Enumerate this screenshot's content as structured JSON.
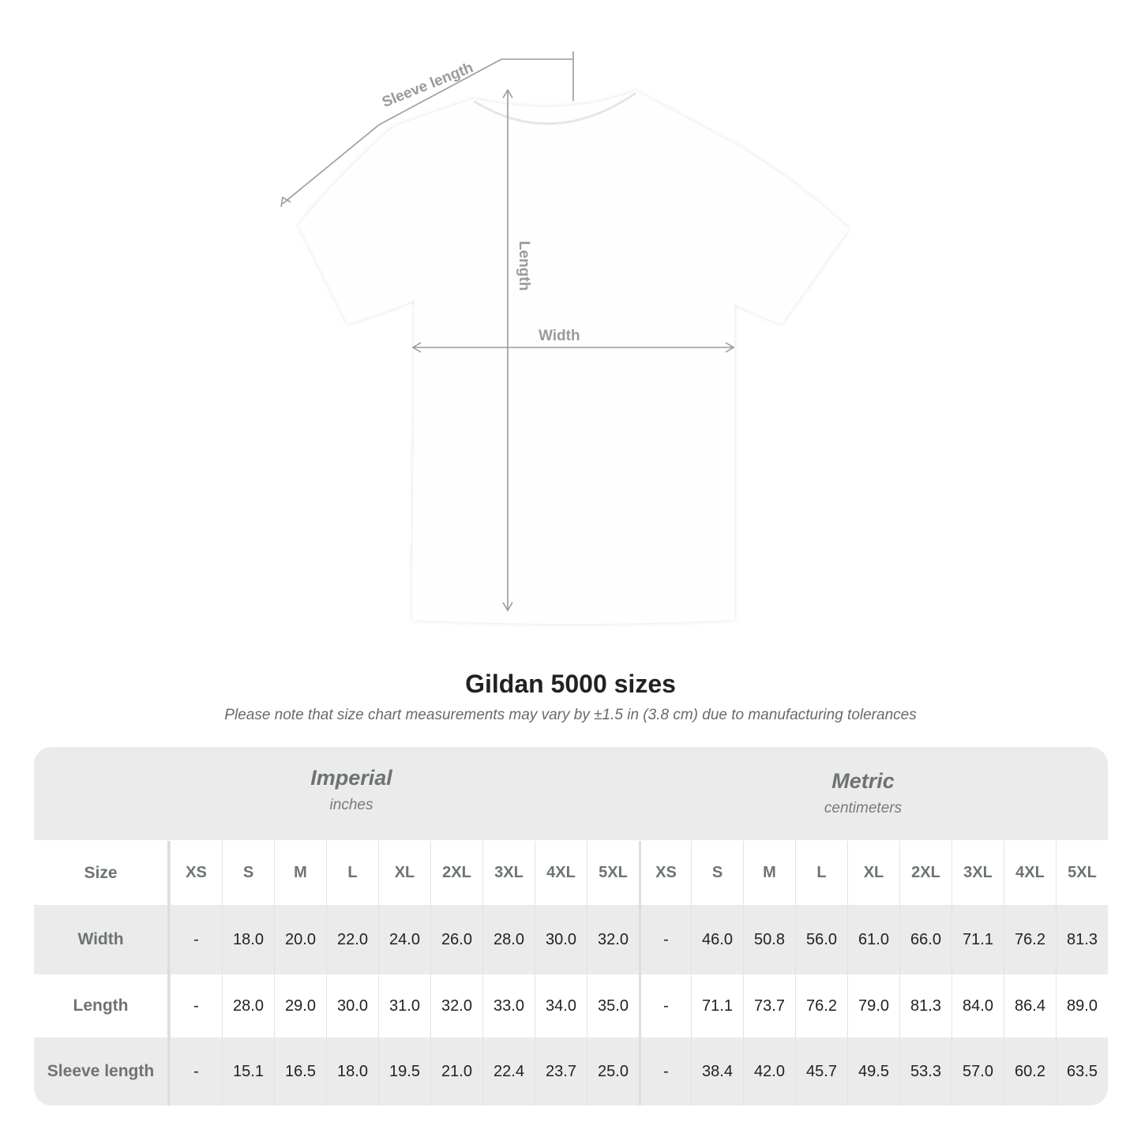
{
  "diagram": {
    "sleeve_label": "Sleeve length",
    "length_label": "Length",
    "width_label": "Width"
  },
  "title": "Gildan 5000 sizes",
  "note": "Please note that size chart measurements may vary by ±1.5 in (3.8 cm) due to manufacturing tolerances",
  "table": {
    "imperial": {
      "name": "Imperial",
      "unit": "inches"
    },
    "metric": {
      "name": "Metric",
      "unit": "centimeters"
    },
    "size_label": "Size",
    "sizes": [
      "XS",
      "S",
      "M",
      "L",
      "XL",
      "2XL",
      "3XL",
      "4XL",
      "5XL"
    ],
    "rows": [
      {
        "label": "Width",
        "imperial": [
          "-",
          "18.0",
          "20.0",
          "22.0",
          "24.0",
          "26.0",
          "28.0",
          "30.0",
          "32.0"
        ],
        "metric": [
          "-",
          "46.0",
          "50.8",
          "56.0",
          "61.0",
          "66.0",
          "71.1",
          "76.2",
          "81.3"
        ]
      },
      {
        "label": "Length",
        "imperial": [
          "-",
          "28.0",
          "29.0",
          "30.0",
          "31.0",
          "32.0",
          "33.0",
          "34.0",
          "35.0"
        ],
        "metric": [
          "-",
          "71.1",
          "73.7",
          "76.2",
          "79.0",
          "81.3",
          "84.0",
          "86.4",
          "89.0"
        ]
      },
      {
        "label": "Sleeve length",
        "imperial": [
          "-",
          "15.1",
          "16.5",
          "18.0",
          "19.5",
          "21.0",
          "22.4",
          "23.7",
          "25.0"
        ],
        "metric": [
          "-",
          "38.4",
          "42.0",
          "45.7",
          "49.5",
          "53.3",
          "57.0",
          "60.2",
          "63.5"
        ]
      }
    ]
  },
  "colors": {
    "shirt": "#ffffff",
    "measure_line": "#9a9a9a",
    "header_bg": "#ebebeb",
    "label_text": "#6d7375"
  }
}
